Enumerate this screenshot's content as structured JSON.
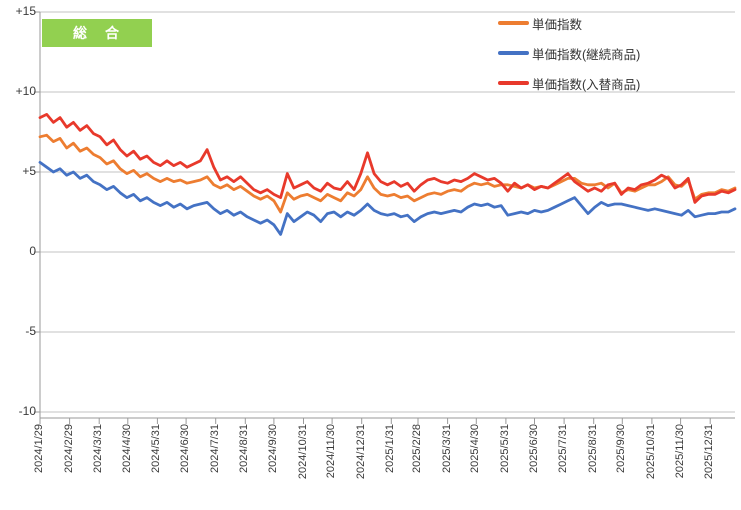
{
  "header": {
    "category_badge_label": "総　合",
    "category_badge_color": "#92d050"
  },
  "legend": {
    "position": "top-right",
    "items": [
      {
        "label": "単価指数",
        "color": "#ed7d31"
      },
      {
        "label": "単価指数(継続商品)",
        "color": "#4472c4"
      },
      {
        "label": "単価指数(入替商品)",
        "color": "#e8392b"
      }
    ]
  },
  "colors": {
    "grid": "#c3c3c3",
    "axis": "#9a9a9a",
    "tick": "#9a9a9a",
    "label_text": "#3a3a3a",
    "background": "#ffffff"
  },
  "chart_data": {
    "type": "line",
    "title": "総　合",
    "xlabel": "",
    "ylabel": "",
    "x_start_date": "2024/1/29",
    "x_interval": "weekly",
    "x_tick_labels": [
      "2024/1/29",
      "2024/2/29",
      "2024/3/31",
      "2024/4/30",
      "2024/5/31",
      "2024/6/30",
      "2024/7/31",
      "2024/8/31",
      "2024/9/30",
      "2024/10/31",
      "2024/11/30",
      "2024/12/31",
      "2025/1/31",
      "2025/2/28",
      "2025/3/31",
      "2025/4/30",
      "2025/5/31",
      "2025/6/30",
      "2025/7/31",
      "2025/8/31",
      "2025/9/30",
      "2025/10/31",
      "2025/11/30",
      "2025/12/31"
    ],
    "y_tick_labels": [
      "+15",
      "+10",
      "+5",
      "0",
      "-5",
      "-10"
    ],
    "y_tick_values": [
      15,
      10,
      5,
      0,
      -5,
      -10
    ],
    "ylim": [
      -10,
      15
    ],
    "grid": "horizontal-only",
    "legend_position": "top-right",
    "series": [
      {
        "name": "単価指数",
        "color": "#ed7d31",
        "values": [
          7.2,
          7.3,
          6.9,
          7.1,
          6.5,
          6.8,
          6.3,
          6.5,
          6.1,
          5.9,
          5.5,
          5.7,
          5.2,
          4.9,
          5.1,
          4.7,
          4.9,
          4.6,
          4.4,
          4.6,
          4.4,
          4.5,
          4.3,
          4.4,
          4.5,
          4.7,
          4.2,
          4.0,
          4.2,
          3.9,
          4.1,
          3.8,
          3.5,
          3.3,
          3.5,
          3.2,
          2.5,
          3.7,
          3.3,
          3.5,
          3.6,
          3.4,
          3.2,
          3.6,
          3.4,
          3.2,
          3.7,
          3.5,
          3.9,
          4.7,
          4.0,
          3.6,
          3.5,
          3.6,
          3.4,
          3.5,
          3.2,
          3.4,
          3.6,
          3.7,
          3.6,
          3.8,
          3.9,
          3.8,
          4.1,
          4.3,
          4.2,
          4.3,
          4.1,
          4.2,
          4.2,
          4.1,
          4.0,
          4.2,
          4.0,
          4.1,
          4.0,
          4.2,
          4.4,
          4.6,
          4.6,
          4.3,
          4.2,
          4.2,
          4.3,
          4.0,
          4.3,
          3.7,
          3.9,
          3.8,
          4.0,
          4.2,
          4.2,
          4.4,
          4.7,
          4.2,
          4.1,
          4.5,
          3.3,
          3.6,
          3.7,
          3.7,
          3.9,
          3.8,
          4.0
        ]
      },
      {
        "name": "単価指数(継続商品)",
        "color": "#4472c4",
        "values": [
          5.6,
          5.3,
          5.0,
          5.2,
          4.8,
          5.0,
          4.6,
          4.8,
          4.4,
          4.2,
          3.9,
          4.1,
          3.7,
          3.4,
          3.6,
          3.2,
          3.4,
          3.1,
          2.9,
          3.1,
          2.8,
          3.0,
          2.7,
          2.9,
          3.0,
          3.1,
          2.7,
          2.4,
          2.6,
          2.3,
          2.5,
          2.2,
          2.0,
          1.8,
          2.0,
          1.7,
          1.1,
          2.4,
          1.9,
          2.2,
          2.5,
          2.3,
          1.9,
          2.4,
          2.5,
          2.2,
          2.5,
          2.3,
          2.6,
          3.0,
          2.6,
          2.4,
          2.3,
          2.4,
          2.2,
          2.3,
          1.9,
          2.2,
          2.4,
          2.5,
          2.4,
          2.5,
          2.6,
          2.5,
          2.8,
          3.0,
          2.9,
          3.0,
          2.8,
          2.9,
          2.3,
          2.4,
          2.5,
          2.4,
          2.6,
          2.5,
          2.6,
          2.8,
          3.0,
          3.2,
          3.4,
          2.9,
          2.4,
          2.8,
          3.1,
          2.9,
          3.0,
          3.0,
          2.9,
          2.8,
          2.7,
          2.6,
          2.7,
          2.6,
          2.5,
          2.4,
          2.3,
          2.6,
          2.2,
          2.3,
          2.4,
          2.4,
          2.5,
          2.5,
          2.7
        ]
      },
      {
        "name": "単価指数(入替商品)",
        "color": "#e8392b",
        "values": [
          8.4,
          8.6,
          8.1,
          8.4,
          7.8,
          8.1,
          7.6,
          7.9,
          7.4,
          7.2,
          6.7,
          7.0,
          6.4,
          6.0,
          6.3,
          5.8,
          6.0,
          5.6,
          5.4,
          5.7,
          5.4,
          5.6,
          5.3,
          5.5,
          5.7,
          6.4,
          5.3,
          4.5,
          4.7,
          4.4,
          4.7,
          4.3,
          3.9,
          3.7,
          3.9,
          3.6,
          3.4,
          4.9,
          4.0,
          4.2,
          4.4,
          4.0,
          3.8,
          4.3,
          4.0,
          3.9,
          4.4,
          3.9,
          4.9,
          6.2,
          4.9,
          4.4,
          4.2,
          4.4,
          4.1,
          4.3,
          3.8,
          4.2,
          4.5,
          4.6,
          4.4,
          4.3,
          4.5,
          4.4,
          4.6,
          4.9,
          4.7,
          4.5,
          4.6,
          4.3,
          3.8,
          4.3,
          4.0,
          4.2,
          3.9,
          4.1,
          4.0,
          4.3,
          4.6,
          4.9,
          4.4,
          4.1,
          3.8,
          4.0,
          3.8,
          4.2,
          4.3,
          3.6,
          4.0,
          3.9,
          4.2,
          4.3,
          4.5,
          4.8,
          4.6,
          4.0,
          4.2,
          4.6,
          3.1,
          3.5,
          3.6,
          3.6,
          3.8,
          3.7,
          3.9
        ]
      }
    ]
  }
}
